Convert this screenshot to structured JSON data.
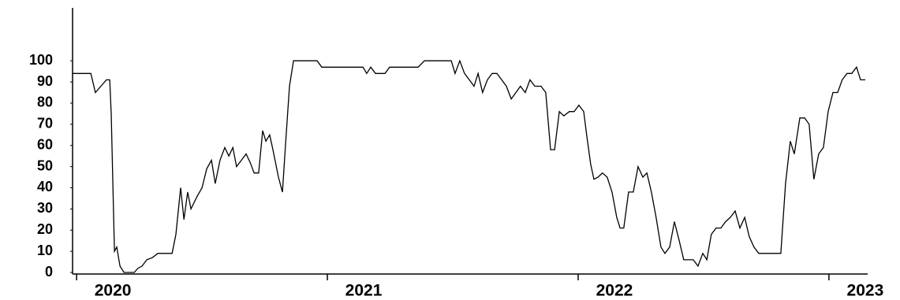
{
  "chart_data": {
    "type": "line",
    "x": [
      2019.984,
      2020.057,
      2020.075,
      2020.097,
      2020.119,
      2020.132,
      2020.138,
      2020.151,
      2020.16,
      2020.173,
      2020.189,
      2020.23,
      2020.245,
      2020.261,
      2020.28,
      2020.302,
      2020.324,
      2020.381,
      2020.396,
      2020.415,
      2020.428,
      2020.443,
      2020.456,
      2020.481,
      2020.5,
      2020.519,
      2020.538,
      2020.553,
      2020.572,
      2020.591,
      2020.607,
      2020.623,
      2020.638,
      2020.657,
      2020.676,
      2020.692,
      2020.708,
      2020.726,
      2020.742,
      2020.755,
      2020.77,
      2020.783,
      2020.805,
      2020.821,
      2020.833,
      2020.849,
      2020.865,
      2020.959,
      2020.978,
      2021.142,
      2021.157,
      2021.173,
      2021.192,
      2021.23,
      2021.248,
      2021.362,
      2021.387,
      2021.494,
      2021.509,
      2021.528,
      2021.547,
      2021.566,
      2021.585,
      2021.601,
      2021.619,
      2021.638,
      2021.657,
      2021.676,
      2021.695,
      2021.714,
      2021.733,
      2021.752,
      2021.77,
      2021.789,
      2021.808,
      2021.827,
      2021.852,
      2021.871,
      2021.89,
      2021.906,
      2021.925,
      2021.943,
      2021.965,
      2021.984,
      2022.003,
      2022.022,
      2022.035,
      2022.05,
      2022.063,
      2022.079,
      2022.097,
      2022.116,
      2022.135,
      2022.154,
      2022.167,
      2022.182,
      2022.201,
      2022.22,
      2022.239,
      2022.258,
      2022.274,
      2022.292,
      2022.311,
      2022.33,
      2022.346,
      2022.365,
      2022.384,
      2022.403,
      2022.421,
      2022.459,
      2022.478,
      2022.497,
      2022.513,
      2022.531,
      2022.55,
      2022.569,
      2022.588,
      2022.607,
      2022.626,
      2022.645,
      2022.664,
      2022.682,
      2022.701,
      2022.72,
      2022.808,
      2022.827,
      2022.846,
      2022.862,
      2022.884,
      2022.903,
      2022.921,
      2022.94,
      2022.959,
      2022.978,
      2022.997,
      2023.016,
      2023.035,
      2023.053,
      2023.072,
      2023.091,
      2023.11,
      2023.126,
      2023.145
    ],
    "values": [
      94,
      94,
      85,
      88,
      91,
      91,
      75,
      10,
      12,
      3,
      0,
      0,
      2,
      3,
      6,
      7,
      9,
      9,
      18,
      40,
      25,
      38,
      30,
      36,
      40,
      49,
      53,
      42,
      53,
      59,
      55,
      59,
      50,
      53,
      56,
      52,
      47,
      47,
      67,
      62,
      65,
      58,
      45,
      38,
      60,
      88,
      100,
      100,
      97,
      97,
      94,
      97,
      94,
      94,
      97,
      97,
      100,
      100,
      94,
      100,
      94,
      91,
      88,
      94,
      85,
      91,
      94,
      94,
      91,
      88,
      82,
      85,
      88,
      85,
      91,
      88,
      88,
      85,
      58,
      58,
      76,
      74,
      76,
      76,
      79,
      76,
      64,
      51,
      44,
      45,
      47,
      45,
      38,
      26,
      21,
      21,
      38,
      38,
      50,
      45,
      47,
      38,
      26,
      12,
      9,
      12,
      24,
      15,
      6,
      6,
      3,
      9,
      6,
      18,
      21,
      21,
      24,
      26,
      29,
      21,
      26,
      17,
      12,
      9,
      9,
      42,
      62,
      56,
      73,
      73,
      70,
      44,
      56,
      59,
      76,
      85,
      85,
      91,
      94,
      94,
      97,
      91,
      91
    ],
    "color": "#000000",
    "xlim": [
      2019.984,
      2023.145
    ],
    "xticks": [
      2020,
      2021,
      2022,
      2023
    ],
    "ylim": [
      0,
      125
    ],
    "yticks": [
      0,
      10,
      20,
      30,
      40,
      50,
      60,
      70,
      80,
      90,
      100
    ]
  }
}
